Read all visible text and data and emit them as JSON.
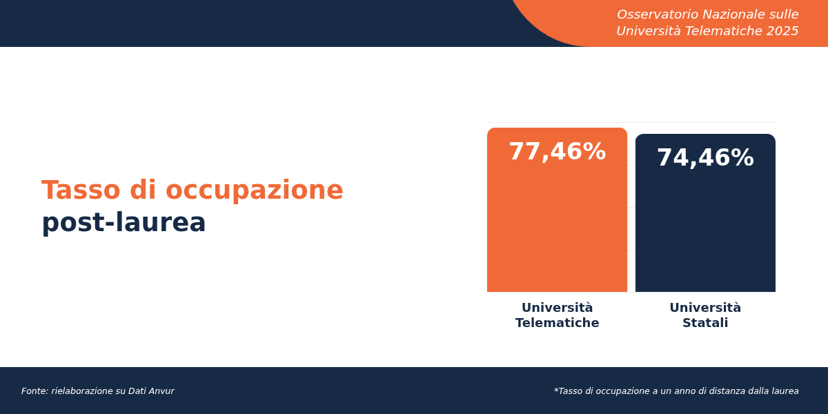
{
  "chart_data": {
    "type": "bar",
    "title": "Tasso di occupazione post-laurea",
    "subtitle": "Osservatorio Nazionale sulle Università Telematiche 2025",
    "categories": [
      "Università Telematiche",
      "Università Statali"
    ],
    "values": [
      77.46,
      74.46
    ],
    "colors": [
      "#f06a37",
      "#172a45"
    ],
    "value_labels": [
      "77,46%",
      "74,46%"
    ],
    "ylim": [
      0,
      80
    ],
    "yticks": [
      0,
      20,
      40,
      60,
      80
    ],
    "tick_labels": "x",
    "grid": "y",
    "annotations": [
      "Fonte: rielaborazione su Dati Anvur",
      "*Tasso di occupazione a un anno di distanza dalla laurea"
    ]
  }
}
